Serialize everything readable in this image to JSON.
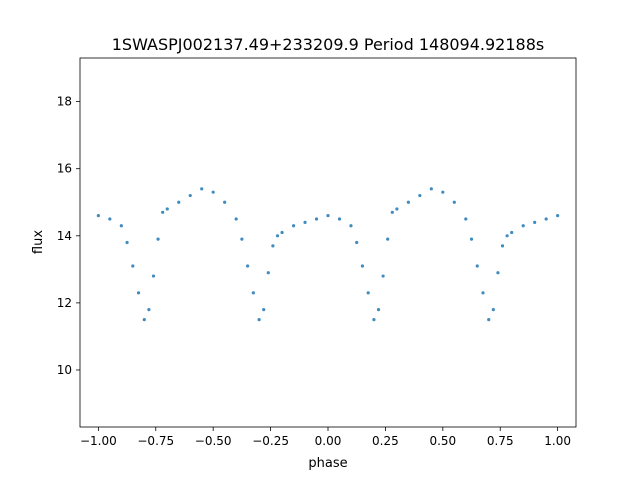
{
  "chart_data": {
    "type": "scatter",
    "title": "1SWASPJ002137.49+233209.9 Period 148094.92188s",
    "xlabel": "phase",
    "ylabel": "flux",
    "xlim": [
      -1.08,
      1.08
    ],
    "ylim": [
      8.3,
      19.3
    ],
    "xticks": [
      -1.0,
      -0.75,
      -0.5,
      -0.25,
      0.0,
      0.25,
      0.5,
      0.75,
      1.0
    ],
    "xtick_labels": [
      "−1.00",
      "−0.75",
      "−0.50",
      "−0.25",
      "0.00",
      "0.25",
      "0.50",
      "0.75",
      "1.00"
    ],
    "yticks": [
      10,
      12,
      14,
      16,
      18
    ],
    "ytick_labels": [
      "10",
      "12",
      "14",
      "16",
      "18"
    ],
    "grid": false,
    "legend": "none",
    "marker_color": "#1f77b4",
    "series": [
      {
        "x": [
          -1.0,
          -0.95,
          -0.9,
          -0.875,
          -0.85,
          -0.825,
          -0.8,
          -0.78,
          -0.76,
          -0.74,
          -0.72,
          -0.7,
          -0.65,
          -0.6,
          -0.55,
          -0.5,
          -0.45,
          -0.4,
          -0.375,
          -0.35,
          -0.325,
          -0.3,
          -0.28,
          -0.26,
          -0.24,
          -0.22,
          -0.2,
          -0.15,
          -0.1,
          -0.05,
          0.0,
          0.05,
          0.1,
          0.125,
          0.15,
          0.175,
          0.2,
          0.22,
          0.24,
          0.26,
          0.28,
          0.3,
          0.35,
          0.4,
          0.45,
          0.5,
          0.55,
          0.6,
          0.625,
          0.65,
          0.675,
          0.7,
          0.72,
          0.74,
          0.76,
          0.78,
          0.8,
          0.85,
          0.9,
          0.95,
          1.0
        ],
        "y": [
          14.6,
          14.5,
          14.3,
          13.8,
          13.1,
          12.3,
          11.5,
          11.8,
          12.8,
          13.9,
          14.7,
          14.8,
          15.0,
          15.2,
          15.4,
          15.3,
          15.0,
          14.5,
          13.9,
          13.1,
          12.3,
          11.5,
          11.8,
          12.9,
          13.7,
          14.0,
          14.1,
          14.3,
          14.4,
          14.5,
          14.6,
          14.5,
          14.3,
          13.8,
          13.1,
          12.3,
          11.5,
          11.8,
          12.8,
          13.9,
          14.7,
          14.8,
          15.0,
          15.2,
          15.4,
          15.3,
          15.0,
          14.5,
          13.9,
          13.1,
          12.3,
          11.5,
          11.8,
          12.9,
          13.7,
          14.0,
          14.1,
          14.3,
          14.4,
          14.5,
          14.6
        ]
      }
    ]
  }
}
